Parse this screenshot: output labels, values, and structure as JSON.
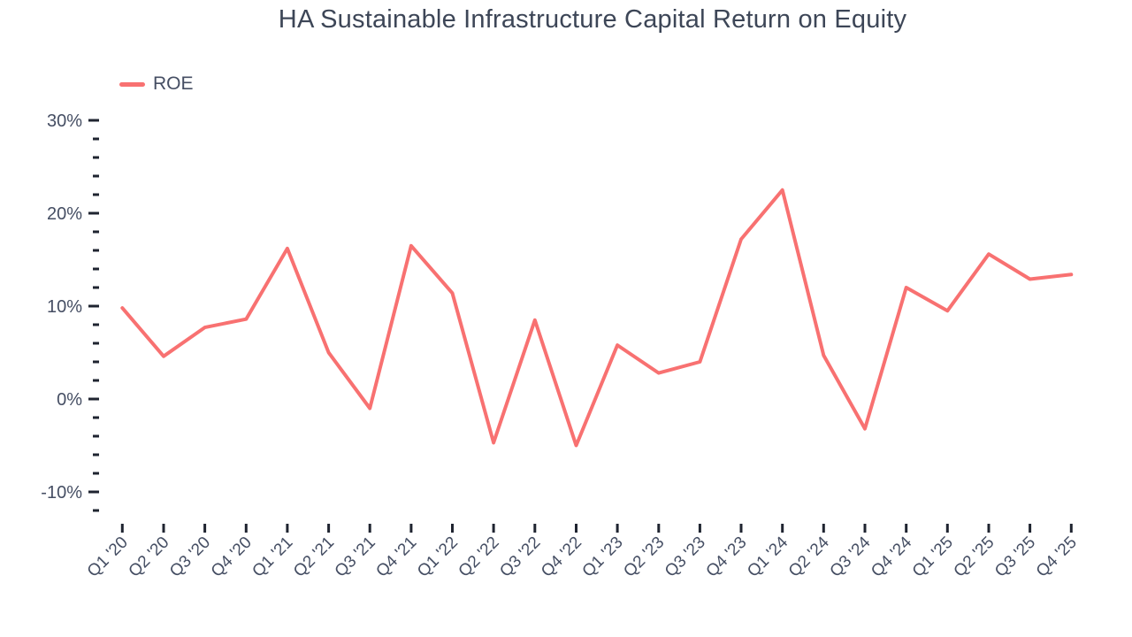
{
  "title": "HA Sustainable Infrastructure Capital Return on Equity",
  "legend": {
    "items": [
      {
        "label": "ROE",
        "swatch": "line-swatch-icon"
      }
    ]
  },
  "colors": {
    "line": "#f87171",
    "tick": "#1f2430",
    "axis_label": "#454e63",
    "title_text": "#3d4657",
    "background": "#ffffff"
  },
  "chart_data": {
    "type": "line",
    "title": "HA Sustainable Infrastructure Capital Return on Equity",
    "unit": "%",
    "grid": false,
    "legend_position": "top-left",
    "categories": [
      "Q1 '20",
      "Q2 '20",
      "Q3 '20",
      "Q4 '20",
      "Q1 '21",
      "Q2 '21",
      "Q3 '21",
      "Q4 '21",
      "Q1 '22",
      "Q2 '22",
      "Q3 '22",
      "Q4 '22",
      "Q1 '23",
      "Q2 '23",
      "Q3 '23",
      "Q4 '23",
      "Q1 '24",
      "Q2 '24",
      "Q3 '24",
      "Q4 '24",
      "Q1 '25",
      "Q2 '25",
      "Q3 '25",
      "Q4 '25"
    ],
    "series": [
      {
        "name": "ROE",
        "color": "#f87171",
        "values": [
          9.8,
          4.6,
          7.7,
          8.6,
          16.2,
          5.0,
          -1.0,
          16.5,
          11.4,
          -4.7,
          8.5,
          -5.0,
          5.8,
          2.8,
          4.0,
          17.2,
          22.5,
          4.7,
          -3.2,
          12.0,
          9.5,
          15.6,
          12.9,
          13.4
        ]
      }
    ],
    "y_axis": {
      "range": [
        -12,
        30
      ],
      "minor_tick_step": 2,
      "major_ticks": [
        {
          "value": 30,
          "label": "30%"
        },
        {
          "value": 20,
          "label": "20%"
        },
        {
          "value": 10,
          "label": "10%"
        },
        {
          "value": 0,
          "label": "0%"
        },
        {
          "value": -10,
          "label": "-10%"
        }
      ]
    }
  }
}
